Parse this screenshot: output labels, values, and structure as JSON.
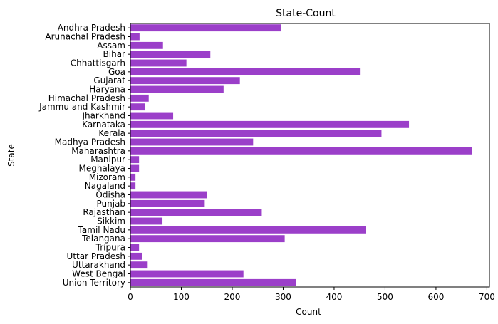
{
  "chart_data": {
    "type": "bar",
    "orientation": "horizontal",
    "title": "State-Count",
    "xlabel": "Count",
    "ylabel": "State",
    "xlim": [
      0,
      705
    ],
    "xticks": [
      0,
      100,
      200,
      300,
      400,
      500,
      600,
      700
    ],
    "grid": false,
    "bar_color": "#9b3fc9",
    "categories": [
      "Andhra Pradesh",
      "Arunachal Pradesh",
      "Assam",
      "Bihar",
      "Chhattisgarh",
      "Goa",
      "Gujarat",
      "Haryana",
      "Himachal Pradesh",
      "Jammu and Kashmir",
      "Jharkhand",
      "Karnataka",
      "Kerala",
      "Madhya Pradesh",
      "Maharashtra",
      "Manipur",
      "Meghalaya",
      "Mizoram",
      "Nagaland",
      "Odisha",
      "Punjab",
      "Rajasthan",
      "Sikkim",
      "Tamil Nadu",
      "Telangana",
      "Tripura",
      "Uttar Pradesh",
      "Uttarakhand",
      "West Bengal",
      "Union Territory"
    ],
    "values": [
      296,
      18,
      64,
      157,
      110,
      452,
      215,
      183,
      36,
      29,
      84,
      547,
      493,
      241,
      671,
      17,
      17,
      10,
      10,
      150,
      146,
      258,
      63,
      463,
      303,
      17,
      23,
      34,
      222,
      325
    ]
  }
}
